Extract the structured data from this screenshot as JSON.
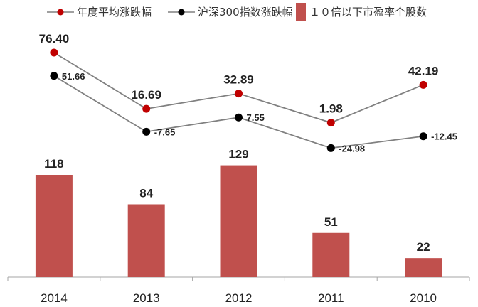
{
  "chart_data": {
    "type": "bar",
    "categories": [
      "2014",
      "2013",
      "2012",
      "2011",
      "2010"
    ],
    "bars": {
      "name": "１０倍以下市盈率个股数",
      "values": [
        118,
        84,
        129,
        51,
        22
      ],
      "labels": [
        "118",
        "84",
        "129",
        "51",
        "22"
      ],
      "color": "#c0504d"
    },
    "lines": [
      {
        "name": "年度平均涨跌幅",
        "values": [
          76.4,
          16.69,
          32.89,
          1.98,
          42.19
        ],
        "labels": [
          "76.40",
          "16.69",
          "32.89",
          "1.98",
          "42.19"
        ],
        "marker_color": "#c00000",
        "line_color": "#808080"
      },
      {
        "name": "沪深300指数涨跌幅",
        "values": [
          51.66,
          -7.65,
          7.55,
          -24.98,
          -12.45
        ],
        "labels": [
          "51.66",
          "-7.65",
          "7.55",
          "-24.98",
          "-12.45"
        ],
        "marker_color": "#000000",
        "line_color": "#808080"
      }
    ],
    "legend_position": "top",
    "grid": false
  }
}
